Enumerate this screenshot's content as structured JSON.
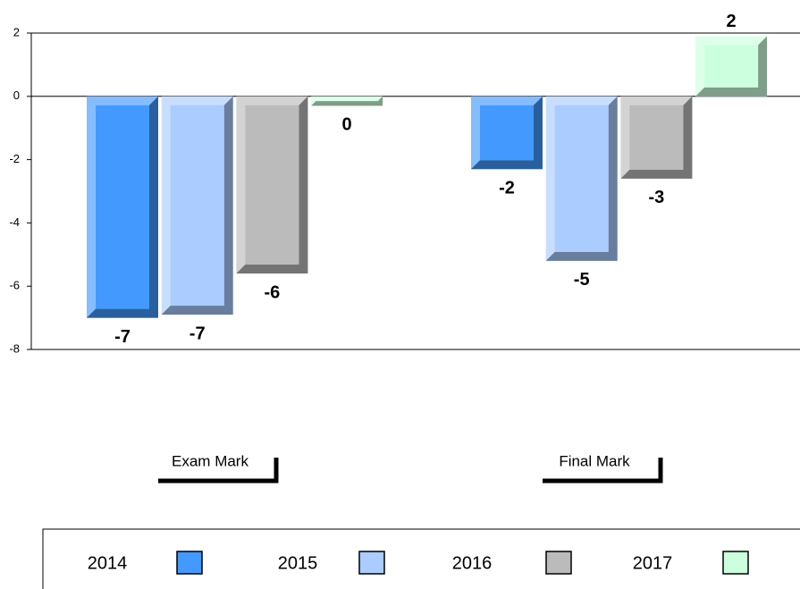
{
  "chart_data": {
    "type": "bar",
    "categories": [
      "Exam Mark",
      "Final Mark"
    ],
    "series": [
      {
        "name": "2014",
        "color": "#4499ff",
        "values": [
          -7.0,
          -2.3
        ],
        "value_labels": [
          "-7",
          "-2"
        ]
      },
      {
        "name": "2015",
        "color": "#aaccff",
        "values": [
          -6.9,
          -5.2
        ],
        "value_labels": [
          "-7",
          "-5"
        ]
      },
      {
        "name": "2016",
        "color": "#bbbbbb",
        "values": [
          -5.6,
          -2.6
        ],
        "value_labels": [
          "-6",
          "-3"
        ]
      },
      {
        "name": "2017",
        "color": "#ccffdd",
        "values": [
          -0.3,
          1.9
        ],
        "value_labels": [
          "0",
          "2"
        ]
      }
    ],
    "ylim": [
      -8,
      2
    ],
    "yticks": [
      2,
      0,
      -2,
      -4,
      -6,
      -8
    ],
    "grid": false
  }
}
